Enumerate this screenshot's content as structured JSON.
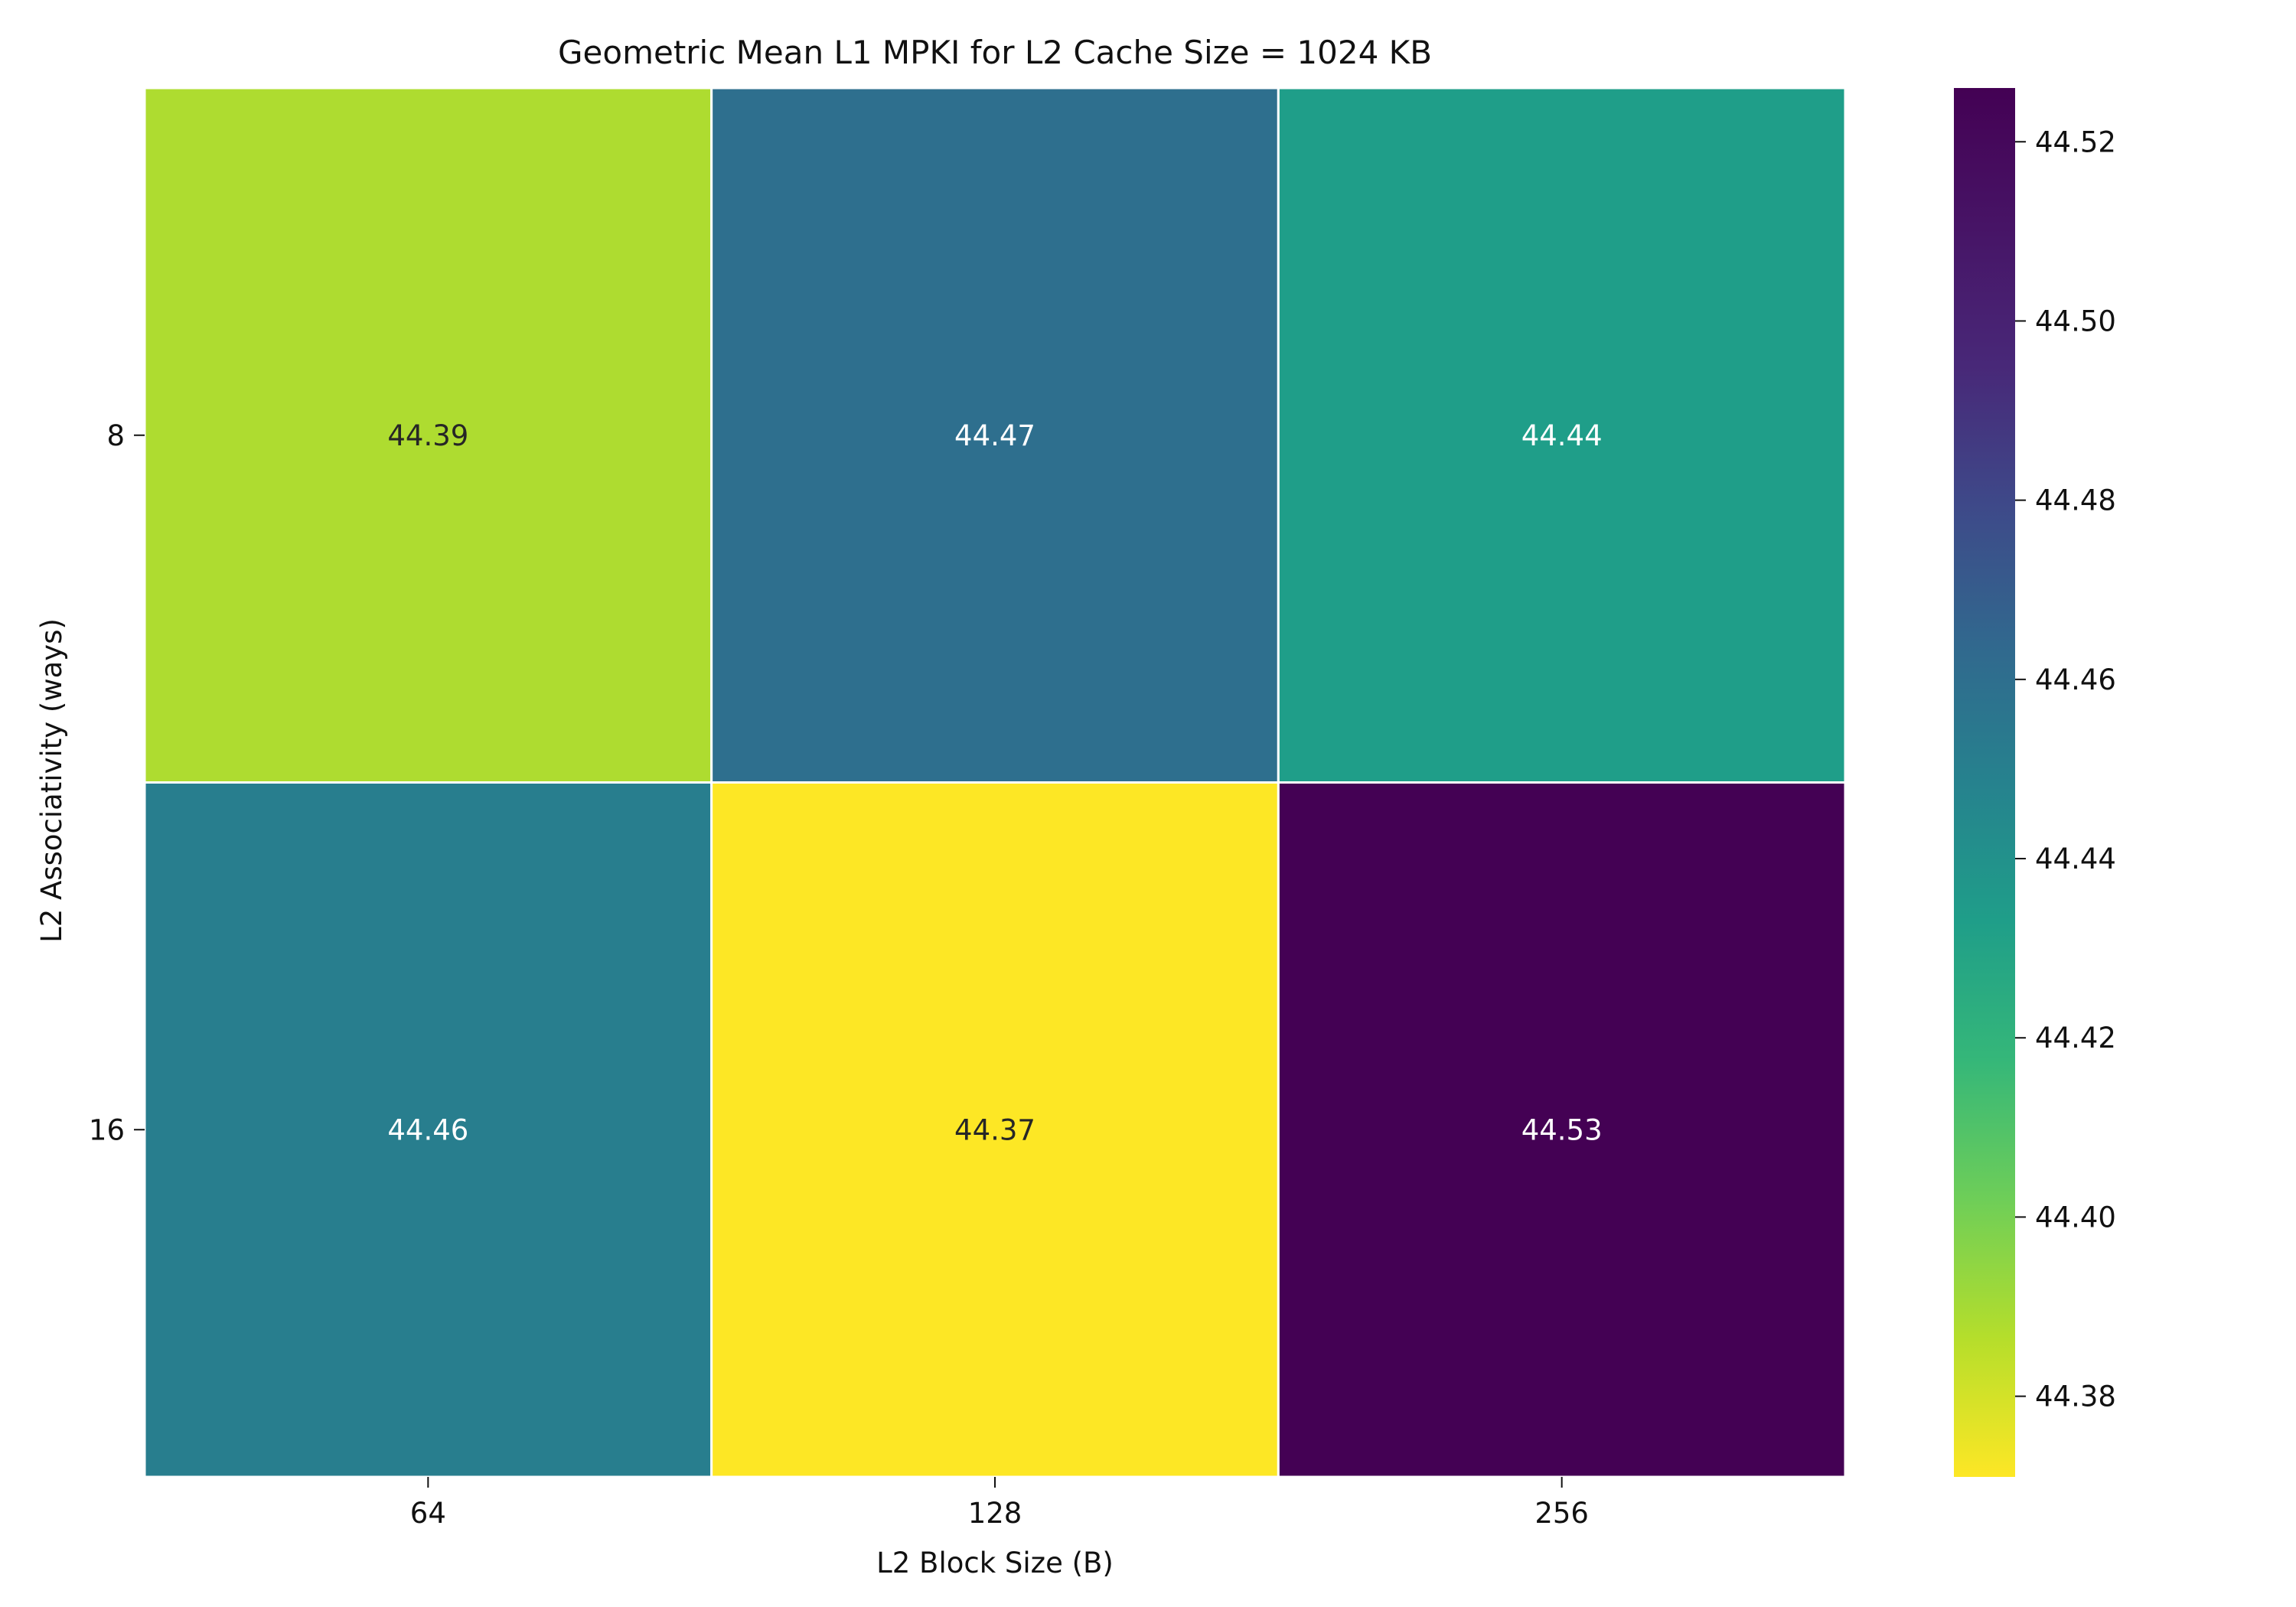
{
  "chart_data": {
    "type": "heatmap",
    "title": "Geometric Mean L1 MPKI for L2 Cache Size = 1024 KB",
    "xlabel": "L2 Block Size (B)",
    "ylabel": "L2 Associativity (ways)",
    "x_categories": [
      "64",
      "128",
      "256"
    ],
    "y_categories": [
      "8",
      "16"
    ],
    "values": [
      [
        44.39,
        44.47,
        44.44
      ],
      [
        44.46,
        44.37,
        44.53
      ]
    ],
    "colormap": "viridis (reversed)",
    "colorbar": {
      "min": 44.371,
      "max": 44.526,
      "ticks": [
        "44.38",
        "44.40",
        "44.42",
        "44.44",
        "44.46",
        "44.48",
        "44.50",
        "44.52"
      ]
    }
  }
}
